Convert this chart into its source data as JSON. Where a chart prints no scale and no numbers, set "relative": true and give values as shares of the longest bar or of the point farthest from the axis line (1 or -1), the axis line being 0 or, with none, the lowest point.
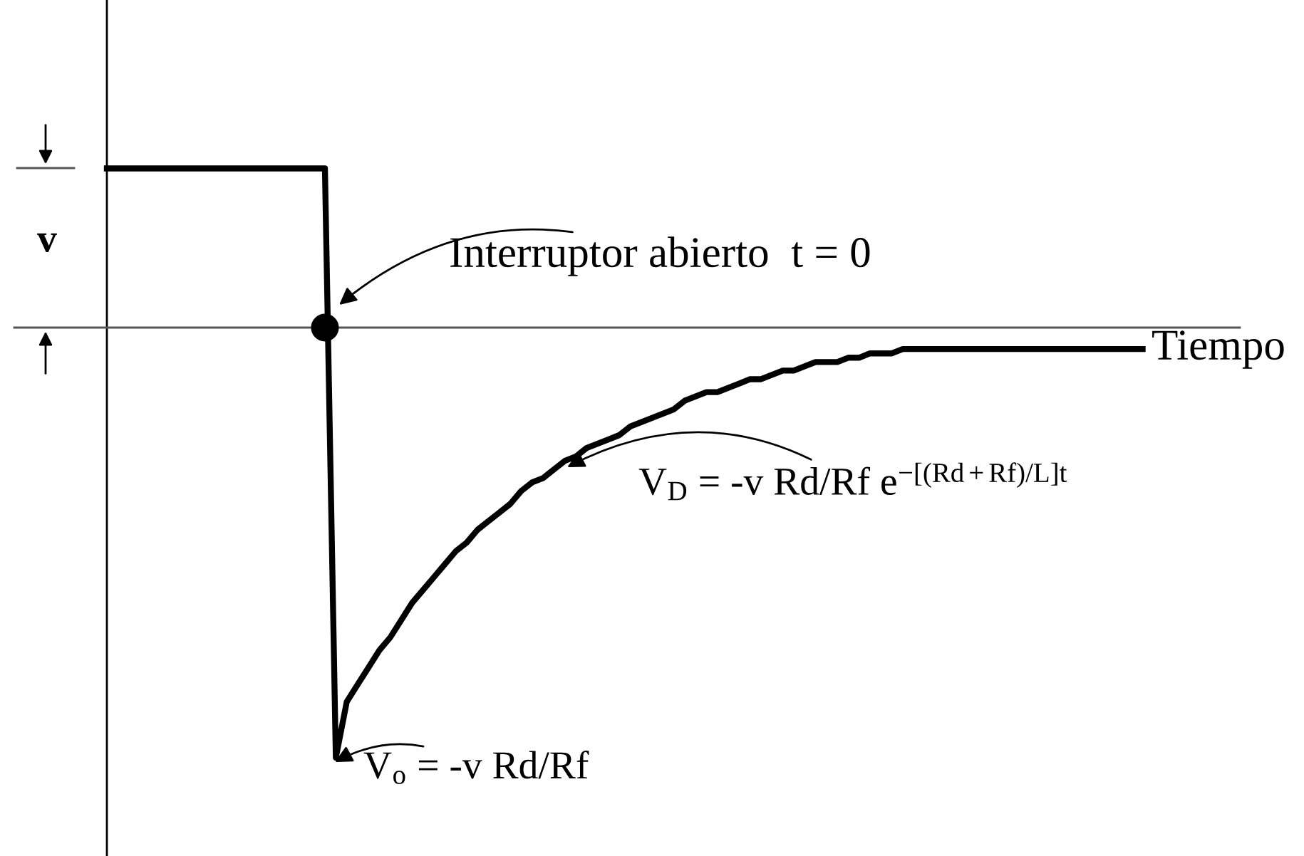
{
  "chart_data": {
    "type": "line",
    "relative": true,
    "xlabel": "Tiempo",
    "categories": [
      null,
      null,
      null,
      null,
      null,
      null,
      null,
      null,
      null,
      null,
      null,
      null,
      null,
      null,
      null,
      null,
      null,
      null,
      null,
      null,
      null,
      null,
      null,
      null,
      null,
      null,
      null,
      null,
      null,
      null,
      null,
      null,
      null,
      null,
      null,
      null,
      null,
      null,
      null,
      null,
      null,
      null,
      null,
      null,
      null,
      null,
      null,
      null,
      null,
      null,
      null,
      null,
      null,
      null,
      null,
      null,
      null,
      null,
      null,
      null,
      null,
      null,
      null,
      null,
      null,
      null,
      null,
      null,
      null,
      null,
      null,
      null,
      null,
      null,
      null,
      null,
      null,
      null,
      null,
      null,
      null,
      null,
      null,
      null,
      null,
      null,
      null,
      null,
      null,
      null,
      null,
      null,
      null,
      null,
      null,
      null
    ],
    "series": [
      {
        "color": "#000000",
        "values": [
          0.37,
          0.37,
          0.37,
          0.37,
          0.37,
          0.37,
          0.37,
          0.37,
          0.37,
          0.37,
          0.37,
          0.37,
          0.37,
          0.37,
          0.37,
          0.37,
          0.37,
          0.37,
          0.37,
          0.37,
          0.37,
          -1.0,
          -0.87,
          -0.83,
          -0.79,
          -0.75,
          -0.72,
          -0.68,
          -0.64,
          -0.61,
          -0.58,
          -0.55,
          -0.52,
          -0.5,
          -0.47,
          -0.45,
          -0.43,
          -0.41,
          -0.38,
          -0.36,
          -0.35,
          -0.33,
          -0.31,
          -0.3,
          -0.28,
          -0.27,
          -0.26,
          -0.25,
          -0.23,
          -0.22,
          -0.21,
          -0.2,
          -0.19,
          -0.17,
          -0.16,
          -0.15,
          -0.15,
          -0.14,
          -0.13,
          -0.12,
          -0.12,
          -0.11,
          -0.1,
          -0.1,
          -0.09,
          -0.08,
          -0.08,
          -0.08,
          -0.07,
          -0.07,
          -0.06,
          -0.06,
          -0.06,
          -0.05,
          -0.05,
          -0.05,
          -0.05,
          -0.05,
          -0.05,
          -0.05,
          -0.05,
          -0.05,
          -0.05,
          -0.05,
          -0.05,
          -0.05,
          -0.05,
          -0.05,
          -0.05,
          -0.05,
          -0.05,
          -0.05,
          -0.05,
          -0.05,
          -0.05,
          -0.05
        ]
      }
    ],
    "annotations": [
      "v",
      "Interruptor abierto  t = 0",
      "V$_{D}$ = -v Rd/Rf e$^{−[(Rd+Rf)/L]t}$",
      "V$_{o}$ = -v Rd/Rf"
    ],
    "marker": "none",
    "line_style": "solid"
  }
}
